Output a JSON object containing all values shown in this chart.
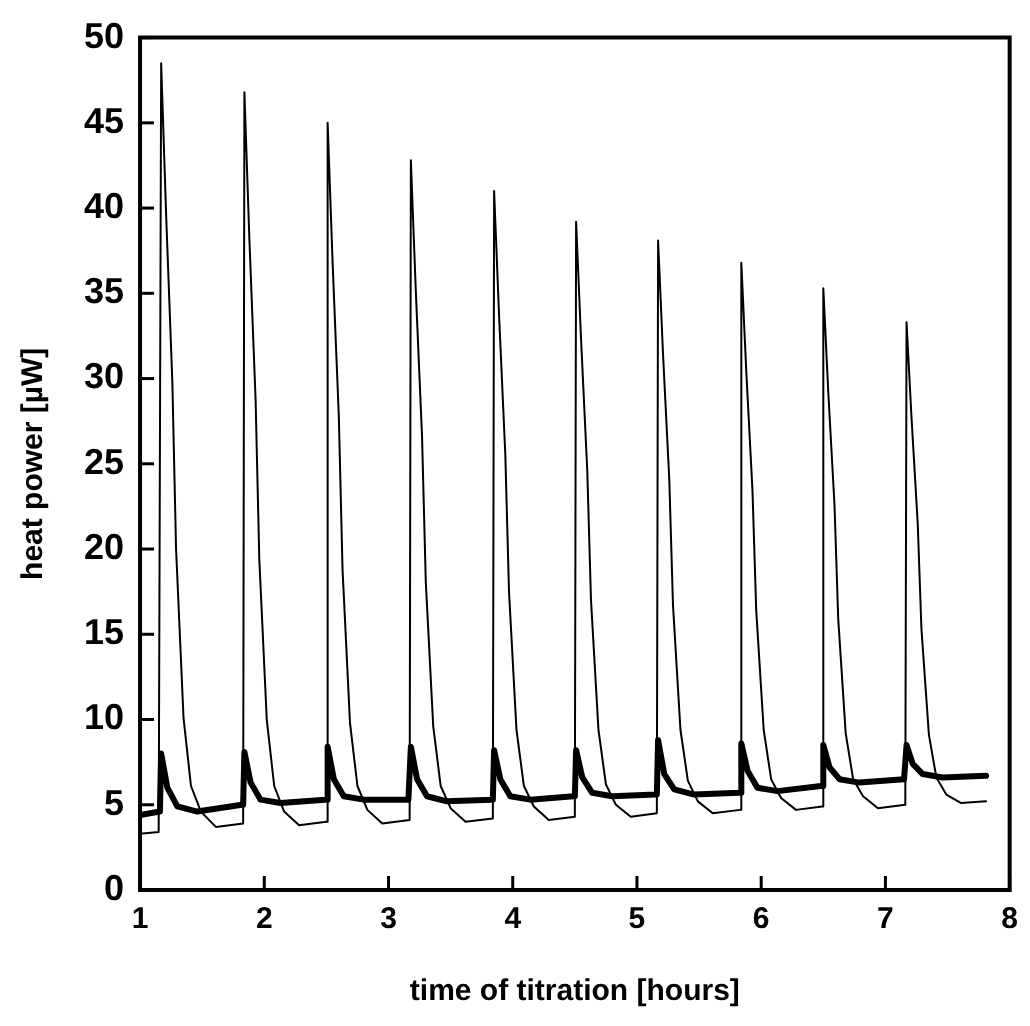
{
  "chart_data": {
    "type": "line",
    "xlabel": "time of titration [hours]",
    "ylabel": "heat power [µW]",
    "xlim": [
      1,
      8
    ],
    "xticks": [
      1,
      2,
      3,
      4,
      5,
      6,
      7,
      8
    ],
    "ylim": [
      0,
      50
    ],
    "yticks": [
      0,
      5,
      10,
      15,
      20,
      25,
      30,
      35,
      40,
      45,
      50
    ],
    "grid": false,
    "legend": false,
    "marker": "none",
    "line_style": "solid",
    "series": [
      {
        "color": "#000000",
        "x": [
          1.0,
          1.15,
          1.16,
          1.17,
          1.21,
          1.26,
          1.29,
          1.35,
          1.41,
          1.49,
          1.61,
          1.83,
          1.84,
          1.88,
          1.93,
          1.96,
          2.02,
          2.08,
          2.16,
          2.28,
          2.5,
          2.51,
          2.55,
          2.6,
          2.63,
          2.69,
          2.75,
          2.83,
          2.95,
          3.17,
          3.18,
          3.22,
          3.27,
          3.3,
          3.36,
          3.42,
          3.5,
          3.62,
          3.84,
          3.85,
          3.89,
          3.94,
          3.97,
          4.03,
          4.09,
          4.17,
          4.29,
          4.5,
          4.51,
          4.55,
          4.6,
          4.63,
          4.69,
          4.75,
          4.83,
          4.95,
          5.16,
          5.17,
          5.21,
          5.26,
          5.29,
          5.35,
          5.41,
          5.49,
          5.61,
          5.83,
          5.84,
          5.88,
          5.93,
          5.96,
          6.02,
          6.08,
          6.16,
          6.28,
          6.49,
          6.5,
          6.54,
          6.59,
          6.62,
          6.68,
          6.74,
          6.82,
          6.94,
          7.16,
          7.17,
          7.21,
          7.26,
          7.29,
          7.35,
          7.41,
          7.49,
          7.61,
          7.81
        ],
        "values": [
          3.3,
          3.4,
          3.4,
          48.5,
          39.6,
          29.8,
          20.0,
          10.1,
          6.1,
          4.6,
          3.7,
          3.9,
          46.8,
          38.2,
          28.8,
          19.4,
          10.0,
          6.1,
          4.6,
          3.8,
          4.0,
          45.0,
          36.8,
          27.8,
          18.8,
          9.8,
          6.1,
          4.7,
          3.9,
          4.1,
          42.8,
          35.1,
          26.6,
          18.1,
          9.6,
          6.1,
          4.8,
          4.0,
          4.2,
          41.0,
          33.7,
          25.6,
          17.5,
          9.4,
          6.1,
          4.9,
          4.1,
          4.3,
          39.2,
          32.3,
          24.6,
          17.0,
          9.4,
          6.2,
          5.0,
          4.3,
          4.5,
          38.1,
          31.4,
          24.1,
          16.7,
          9.4,
          6.4,
          5.2,
          4.5,
          4.7,
          36.8,
          30.4,
          23.4,
          16.4,
          9.4,
          6.5,
          5.4,
          4.7,
          4.9,
          35.3,
          29.2,
          22.6,
          15.9,
          9.2,
          6.5,
          5.5,
          4.8,
          5.0,
          33.3,
          27.7,
          21.5,
          15.3,
          9.1,
          6.6,
          5.6,
          5.1,
          5.2
        ]
      },
      {
        "color": "#000000",
        "x": [
          1.0,
          1.16,
          1.17,
          1.22,
          1.3,
          1.46,
          1.82,
          1.83,
          1.84,
          1.89,
          1.97,
          2.13,
          2.49,
          2.5,
          2.51,
          2.56,
          2.64,
          2.8,
          3.16,
          3.17,
          3.18,
          3.23,
          3.31,
          3.47,
          3.83,
          3.84,
          3.85,
          3.9,
          3.98,
          4.14,
          4.49,
          4.5,
          4.51,
          4.56,
          4.64,
          4.8,
          5.15,
          5.16,
          5.17,
          5.22,
          5.3,
          5.46,
          5.82,
          5.83,
          5.84,
          5.89,
          5.97,
          6.13,
          6.48,
          6.49,
          6.5,
          6.55,
          6.63,
          6.79,
          7.15,
          7.16,
          7.17,
          7.22,
          7.3,
          7.46,
          7.81
        ],
        "values": [
          4.4,
          4.6,
          8.0,
          6.0,
          4.9,
          4.6,
          5.0,
          5.0,
          8.1,
          6.3,
          5.3,
          5.1,
          5.3,
          5.3,
          8.4,
          6.5,
          5.5,
          5.3,
          5.3,
          5.3,
          8.4,
          6.5,
          5.5,
          5.2,
          5.3,
          5.3,
          8.2,
          6.5,
          5.5,
          5.3,
          5.5,
          5.5,
          8.2,
          6.6,
          5.7,
          5.5,
          5.6,
          5.6,
          8.8,
          6.8,
          5.9,
          5.6,
          5.7,
          5.7,
          8.6,
          7.0,
          6.0,
          5.8,
          6.1,
          6.1,
          8.5,
          7.2,
          6.5,
          6.3,
          6.5,
          6.5,
          8.5,
          7.4,
          6.8,
          6.6,
          6.7
        ]
      }
    ]
  }
}
